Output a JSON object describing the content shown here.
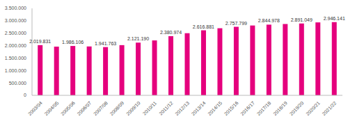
{
  "chart_data": {
    "type": "bar",
    "categories": [
      "2003/04",
      "2004/05",
      "2005/06",
      "2006/07",
      "2007/08",
      "2008/09",
      "2009/10",
      "2010/11",
      "2011/12",
      "2012/13",
      "2013/14",
      "2014/15",
      "2015/16",
      "2016/17",
      "2017/18",
      "2018/19",
      "2019/20",
      "2020/21",
      "2021/22"
    ],
    "values": [
      2019831,
      1960000,
      1986106,
      1970000,
      1941763,
      2020000,
      2121190,
      2210000,
      2380974,
      2500000,
      2616881,
      2700000,
      2757799,
      2810000,
      2844978,
      2870000,
      2891049,
      2935000,
      2946141
    ],
    "value_labels": [
      "2.019.831",
      null,
      "1.986.106",
      null,
      "1.941.763",
      null,
      "2.121.190",
      null,
      "2.380.974",
      null,
      "2.616.881",
      null,
      "2.757.799",
      null,
      "2.844.978",
      null,
      "2.891.049",
      null,
      "2.946.141"
    ],
    "data_labels": true,
    "color": "#e5007d",
    "ylim": [
      0,
      3500000
    ],
    "yticks": [
      0,
      {
        "value": 500000,
        "label": "500.000"
      },
      {
        "value": 1000000,
        "label": "1.000.000"
      },
      {
        "value": 1500000,
        "label": "1.500.000"
      },
      {
        "value": 2000000,
        "label": "2.000.000"
      },
      {
        "value": 2500000,
        "label": "2.500.000"
      },
      {
        "value": 3000000,
        "label": "3.000.000"
      },
      {
        "value": 3500000,
        "label": "3.500.000"
      }
    ],
    "grid": false
  }
}
